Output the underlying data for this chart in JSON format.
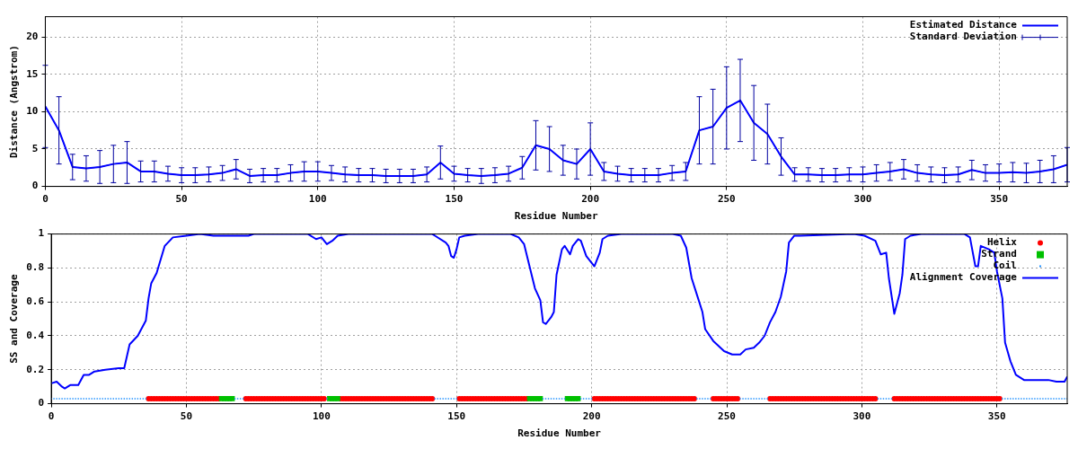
{
  "chart_data": [
    {
      "type": "line",
      "xlabel": "Residue Number",
      "ylabel": "Distance (Angstrom)",
      "xlim": [
        0,
        375
      ],
      "xticks": [
        0,
        50,
        100,
        150,
        200,
        250,
        300,
        350
      ],
      "ylim": [
        0,
        22.7
      ],
      "yticks": [
        0,
        5,
        10,
        15,
        20
      ],
      "grid": true,
      "legend": "top right",
      "x": [
        0,
        5,
        10,
        15,
        20,
        25,
        30,
        35,
        40,
        45,
        50,
        55,
        60,
        65,
        70,
        75,
        80,
        85,
        90,
        95,
        100,
        105,
        110,
        115,
        120,
        125,
        130,
        135,
        140,
        145,
        150,
        155,
        160,
        165,
        170,
        175,
        180,
        185,
        190,
        195,
        200,
        205,
        210,
        215,
        220,
        225,
        230,
        235,
        240,
        245,
        250,
        255,
        260,
        265,
        270,
        275,
        280,
        285,
        290,
        295,
        300,
        305,
        310,
        315,
        320,
        325,
        330,
        335,
        340,
        345,
        350,
        355,
        360,
        365,
        370,
        375
      ],
      "series": [
        {
          "name": "Estimated Distance",
          "color": "#0000ff",
          "marker": "none",
          "line_style": "solid",
          "values": [
            10.7,
            7.5,
            2.6,
            2.4,
            2.6,
            3.0,
            3.2,
            2.0,
            2.0,
            1.7,
            1.5,
            1.5,
            1.6,
            1.8,
            2.3,
            1.4,
            1.5,
            1.5,
            1.8,
            2.0,
            2.0,
            1.8,
            1.6,
            1.5,
            1.5,
            1.4,
            1.4,
            1.4,
            1.6,
            3.2,
            1.7,
            1.5,
            1.4,
            1.5,
            1.7,
            2.5,
            5.5,
            5.0,
            3.5,
            3.0,
            5.0,
            2.0,
            1.7,
            1.5,
            1.5,
            1.5,
            1.8,
            2.0,
            7.5,
            8.0,
            10.5,
            11.5,
            8.5,
            7.0,
            4.0,
            1.6,
            1.6,
            1.5,
            1.5,
            1.6,
            1.6,
            1.8,
            2.0,
            2.3,
            1.8,
            1.6,
            1.5,
            1.6,
            2.2,
            1.8,
            1.8,
            1.9,
            1.8,
            2.0,
            2.3,
            2.9
          ]
        },
        {
          "name": "Standard Deviation",
          "color": "#0000a0",
          "marker": "none",
          "line_style": "solid",
          "values": [
            10.7,
            7.5,
            2.6,
            2.4,
            2.6,
            3.0,
            3.2,
            2.0,
            2.0,
            1.7,
            1.5,
            1.5,
            1.6,
            1.8,
            2.3,
            1.4,
            1.5,
            1.5,
            1.8,
            2.0,
            2.0,
            1.8,
            1.6,
            1.5,
            1.5,
            1.4,
            1.4,
            1.4,
            1.6,
            3.2,
            1.7,
            1.5,
            1.4,
            1.5,
            1.7,
            2.5,
            5.5,
            5.0,
            3.5,
            3.0,
            5.0,
            2.0,
            1.7,
            1.5,
            1.5,
            1.5,
            1.8,
            2.0,
            7.5,
            8.0,
            10.5,
            11.5,
            8.5,
            7.0,
            4.0,
            1.6,
            1.6,
            1.5,
            1.5,
            1.6,
            1.6,
            1.8,
            2.0,
            2.3,
            1.8,
            1.6,
            1.5,
            1.6,
            2.2,
            1.8,
            1.8,
            1.9,
            1.8,
            2.0,
            2.3,
            2.9
          ],
          "errors": [
            5.5,
            4.5,
            1.7,
            1.7,
            2.2,
            2.5,
            2.8,
            1.4,
            1.4,
            1.0,
            1.0,
            1.0,
            1.0,
            1.0,
            1.3,
            0.9,
            0.9,
            0.9,
            1.1,
            1.3,
            1.3,
            1.0,
            1.0,
            0.9,
            0.9,
            0.9,
            0.9,
            0.9,
            1.0,
            2.2,
            1.0,
            0.9,
            1.0,
            1.0,
            1.0,
            1.5,
            3.3,
            3.0,
            2.0,
            2.0,
            3.5,
            1.2,
            1.0,
            0.9,
            0.9,
            0.9,
            1.0,
            1.2,
            4.5,
            5.0,
            5.5,
            5.5,
            5.0,
            4.0,
            2.5,
            0.9,
            0.9,
            0.9,
            0.9,
            0.9,
            1.0,
            1.1,
            1.2,
            1.3,
            1.1,
            1.0,
            1.0,
            1.0,
            1.3,
            1.1,
            1.2,
            1.3,
            1.3,
            1.5,
            1.8,
            2.3
          ]
        }
      ]
    },
    {
      "type": "line",
      "xlabel": "Residue Number",
      "ylabel": "SS and Coverage",
      "xlim": [
        0,
        376
      ],
      "xticks": [
        0,
        50,
        100,
        150,
        200,
        250,
        300,
        350
      ],
      "ylim": [
        0,
        1
      ],
      "yticks": [
        0,
        0.2,
        0.4,
        0.6,
        0.8,
        1
      ],
      "grid": true,
      "legend": "top right",
      "series": [
        {
          "name": "Helix",
          "type": "scatter",
          "color": "#ff0000",
          "marker": "circle",
          "x": [
            36,
            37,
            38,
            39,
            40,
            41,
            42,
            43,
            44,
            45,
            46,
            47,
            48,
            49,
            50,
            51,
            52,
            53,
            54,
            55,
            56,
            57,
            58,
            59,
            60,
            61,
            62,
            72,
            73,
            74,
            75,
            76,
            77,
            78,
            79,
            80,
            81,
            82,
            83,
            84,
            85,
            86,
            87,
            88,
            89,
            90,
            91,
            92,
            93,
            94,
            95,
            96,
            97,
            98,
            99,
            100,
            101,
            107,
            108,
            109,
            110,
            111,
            112,
            113,
            114,
            115,
            116,
            117,
            118,
            119,
            120,
            121,
            122,
            123,
            124,
            125,
            126,
            127,
            128,
            129,
            130,
            131,
            132,
            133,
            134,
            135,
            136,
            137,
            138,
            139,
            140,
            141,
            151,
            152,
            153,
            154,
            155,
            156,
            157,
            158,
            159,
            160,
            161,
            162,
            163,
            164,
            165,
            166,
            167,
            168,
            169,
            170,
            171,
            172,
            173,
            174,
            175,
            176,
            201,
            202,
            203,
            204,
            205,
            206,
            207,
            208,
            209,
            210,
            211,
            212,
            213,
            214,
            215,
            216,
            217,
            218,
            219,
            220,
            221,
            222,
            223,
            224,
            225,
            226,
            227,
            228,
            229,
            230,
            231,
            232,
            233,
            234,
            235,
            236,
            237,
            238,
            245,
            246,
            247,
            248,
            249,
            250,
            251,
            252,
            253,
            254,
            266,
            267,
            268,
            269,
            270,
            271,
            272,
            273,
            274,
            275,
            276,
            277,
            278,
            279,
            280,
            281,
            282,
            283,
            284,
            285,
            286,
            287,
            288,
            289,
            290,
            291,
            292,
            293,
            294,
            295,
            296,
            297,
            298,
            299,
            300,
            301,
            302,
            303,
            304,
            305,
            312,
            313,
            314,
            315,
            316,
            317,
            318,
            319,
            320,
            321,
            322,
            323,
            324,
            325,
            326,
            327,
            328,
            329,
            330,
            331,
            332,
            333,
            334,
            335,
            336,
            337,
            338,
            339,
            340,
            341,
            342,
            343,
            344,
            345,
            346,
            347,
            348,
            349,
            350,
            351
          ],
          "values": [
            0.03,
            0.03,
            0.03,
            0.03,
            0.03,
            0.03,
            0.03,
            0.03,
            0.03,
            0.03,
            0.03,
            0.03,
            0.03,
            0.03,
            0.03,
            0.03,
            0.03,
            0.03,
            0.03,
            0.03,
            0.03,
            0.03,
            0.03,
            0.03,
            0.03,
            0.03,
            0.03,
            0.03,
            0.03,
            0.03,
            0.03,
            0.03,
            0.03,
            0.03,
            0.03,
            0.03,
            0.03,
            0.03,
            0.03,
            0.03,
            0.03,
            0.03,
            0.03,
            0.03,
            0.03,
            0.03,
            0.03,
            0.03,
            0.03,
            0.03,
            0.03,
            0.03,
            0.03,
            0.03,
            0.03,
            0.03,
            0.03,
            0.03,
            0.03,
            0.03,
            0.03,
            0.03,
            0.03,
            0.03,
            0.03,
            0.03,
            0.03,
            0.03,
            0.03,
            0.03,
            0.03,
            0.03,
            0.03,
            0.03,
            0.03,
            0.03,
            0.03,
            0.03,
            0.03,
            0.03,
            0.03,
            0.03,
            0.03,
            0.03,
            0.03,
            0.03,
            0.03,
            0.03,
            0.03,
            0.03,
            0.03,
            0.03,
            0.03,
            0.03,
            0.03,
            0.03,
            0.03,
            0.03,
            0.03,
            0.03,
            0.03,
            0.03,
            0.03,
            0.03,
            0.03,
            0.03,
            0.03,
            0.03,
            0.03,
            0.03,
            0.03,
            0.03,
            0.03,
            0.03,
            0.03,
            0.03,
            0.03,
            0.03,
            0.03,
            0.03,
            0.03,
            0.03,
            0.03,
            0.03,
            0.03,
            0.03,
            0.03,
            0.03,
            0.03,
            0.03,
            0.03,
            0.03,
            0.03,
            0.03,
            0.03,
            0.03,
            0.03,
            0.03,
            0.03,
            0.03,
            0.03,
            0.03,
            0.03,
            0.03,
            0.03,
            0.03,
            0.03,
            0.03,
            0.03,
            0.03,
            0.03,
            0.03,
            0.03,
            0.03,
            0.03,
            0.03,
            0.03,
            0.03,
            0.03,
            0.03,
            0.03,
            0.03,
            0.03,
            0.03,
            0.03,
            0.03,
            0.03,
            0.03,
            0.03,
            0.03,
            0.03,
            0.03,
            0.03,
            0.03,
            0.03,
            0.03,
            0.03,
            0.03,
            0.03,
            0.03,
            0.03,
            0.03,
            0.03,
            0.03,
            0.03,
            0.03,
            0.03,
            0.03,
            0.03,
            0.03,
            0.03,
            0.03,
            0.03,
            0.03,
            0.03,
            0.03,
            0.03,
            0.03,
            0.03,
            0.03,
            0.03,
            0.03,
            0.03,
            0.03,
            0.03,
            0.03,
            0.03,
            0.03,
            0.03,
            0.03,
            0.03,
            0.03,
            0.03,
            0.03,
            0.03,
            0.03,
            0.03,
            0.03,
            0.03,
            0.03,
            0.03,
            0.03,
            0.03,
            0.03,
            0.03,
            0.03,
            0.03,
            0.03,
            0.03,
            0.03,
            0.03,
            0.03,
            0.03,
            0.03,
            0.03,
            0.03,
            0.03,
            0.03,
            0.03,
            0.03,
            0.03,
            0.03,
            0.03,
            0.03,
            0.03,
            0.03
          ]
        },
        {
          "name": "Strand",
          "type": "scatter",
          "color": "#00c000",
          "marker": "square",
          "x": [
            63,
            64,
            65,
            66,
            67,
            103,
            104,
            105,
            106,
            177,
            178,
            179,
            180,
            181,
            191,
            192,
            193,
            194,
            195
          ],
          "values": [
            0.03,
            0.03,
            0.03,
            0.03,
            0.03,
            0.03,
            0.03,
            0.03,
            0.03,
            0.03,
            0.03,
            0.03,
            0.03,
            0.03,
            0.03,
            0.03,
            0.03,
            0.03,
            0.03
          ]
        },
        {
          "name": "Coil",
          "type": "scatter",
          "color": "#1e90ff",
          "marker": "square",
          "x": [
            0,
            1,
            2,
            3,
            4,
            5,
            6,
            7,
            8,
            9,
            10,
            11,
            12,
            13,
            14,
            15,
            16,
            17,
            18,
            19,
            20,
            21,
            22,
            23,
            24,
            25,
            26,
            27,
            28,
            29,
            30,
            31,
            32,
            33,
            34,
            35,
            68,
            69,
            70,
            71,
            102,
            142,
            143,
            144,
            145,
            146,
            147,
            148,
            149,
            150,
            182,
            183,
            184,
            185,
            186,
            187,
            188,
            189,
            190,
            196,
            197,
            198,
            199,
            200,
            239,
            240,
            241,
            242,
            243,
            244,
            255,
            256,
            257,
            258,
            259,
            260,
            261,
            262,
            263,
            264,
            265,
            306,
            307,
            308,
            309,
            310,
            311,
            352,
            353,
            354,
            355,
            356,
            357,
            358,
            359,
            360,
            361,
            362,
            363,
            364,
            365,
            366,
            367,
            368,
            369,
            370,
            371,
            372,
            373,
            374,
            375,
            376
          ],
          "values": [
            0.03,
            0.03,
            0.03,
            0.03,
            0.03,
            0.03,
            0.03,
            0.03,
            0.03,
            0.03,
            0.03,
            0.03,
            0.03,
            0.03,
            0.03,
            0.03,
            0.03,
            0.03,
            0.03,
            0.03,
            0.03,
            0.03,
            0.03,
            0.03,
            0.03,
            0.03,
            0.03,
            0.03,
            0.03,
            0.03,
            0.03,
            0.03,
            0.03,
            0.03,
            0.03,
            0.03,
            0.03,
            0.03,
            0.03,
            0.03,
            0.03,
            0.03,
            0.03,
            0.03,
            0.03,
            0.03,
            0.03,
            0.03,
            0.03,
            0.03,
            0.03,
            0.03,
            0.03,
            0.03,
            0.03,
            0.03,
            0.03,
            0.03,
            0.03,
            0.03,
            0.03,
            0.03,
            0.03,
            0.03,
            0.03,
            0.03,
            0.03,
            0.03,
            0.03,
            0.03,
            0.03,
            0.03,
            0.03,
            0.03,
            0.03,
            0.03,
            0.03,
            0.03,
            0.03,
            0.03,
            0.03,
            0.03,
            0.03,
            0.03,
            0.03,
            0.03,
            0.03,
            0.03,
            0.03,
            0.03,
            0.03,
            0.03,
            0.03,
            0.03,
            0.03,
            0.03,
            0.03,
            0.03,
            0.03,
            0.03,
            0.03,
            0.03,
            0.03,
            0.03,
            0.03,
            0.03,
            0.03,
            0.03,
            0.03,
            0.03,
            0.03,
            0.03
          ]
        },
        {
          "name": "Alignment Coverage",
          "color": "#0000ff",
          "marker": "none",
          "line_style": "solid",
          "x": [
            0,
            2,
            4,
            5,
            7,
            10,
            12,
            14,
            16,
            20,
            25,
            27,
            28,
            29,
            32,
            35,
            36,
            37,
            39,
            42,
            45,
            50,
            55,
            60,
            65,
            70,
            73,
            75,
            95,
            98,
            100,
            102,
            104,
            106,
            110,
            141,
            142,
            146,
            147,
            148,
            149,
            150,
            151,
            153,
            158,
            170,
            173,
            175,
            177,
            179,
            181,
            182,
            183,
            185,
            186,
            187,
            189,
            190,
            192,
            193,
            195,
            196,
            198,
            201,
            203,
            204,
            206,
            211,
            230,
            233,
            235,
            237,
            239,
            241,
            242,
            245,
            249,
            252,
            255,
            257,
            260,
            262,
            264,
            266,
            268,
            270,
            272,
            273,
            275,
            277,
            297,
            301,
            305,
            307,
            309,
            310,
            312,
            314,
            315,
            316,
            318,
            322,
            338,
            340,
            342,
            343,
            344,
            347,
            349,
            350,
            352,
            353,
            355,
            357,
            360,
            369,
            372,
            375,
            376
          ],
          "values": [
            0.12,
            0.13,
            0.1,
            0.09,
            0.11,
            0.11,
            0.17,
            0.17,
            0.19,
            0.2,
            0.21,
            0.21,
            0.28,
            0.35,
            0.4,
            0.49,
            0.62,
            0.71,
            0.77,
            0.93,
            0.98,
            0.99,
            1.0,
            0.99,
            0.99,
            0.99,
            0.99,
            1.0,
            1.0,
            0.97,
            0.98,
            0.94,
            0.96,
            0.99,
            1.0,
            1.0,
            0.99,
            0.95,
            0.93,
            0.87,
            0.86,
            0.91,
            0.98,
            0.99,
            1.0,
            1.0,
            0.98,
            0.94,
            0.81,
            0.68,
            0.61,
            0.48,
            0.47,
            0.51,
            0.54,
            0.76,
            0.91,
            0.93,
            0.88,
            0.93,
            0.97,
            0.96,
            0.87,
            0.81,
            0.89,
            0.97,
            0.99,
            1.0,
            1.0,
            0.99,
            0.92,
            0.74,
            0.64,
            0.54,
            0.44,
            0.37,
            0.31,
            0.29,
            0.29,
            0.32,
            0.33,
            0.36,
            0.4,
            0.48,
            0.54,
            0.63,
            0.78,
            0.95,
            0.99,
            0.99,
            1.0,
            0.99,
            0.96,
            0.88,
            0.89,
            0.74,
            0.53,
            0.65,
            0.76,
            0.97,
            0.99,
            1.0,
            1.0,
            0.98,
            0.81,
            0.81,
            0.93,
            0.91,
            0.89,
            0.78,
            0.62,
            0.36,
            0.25,
            0.17,
            0.14,
            0.14,
            0.13,
            0.13,
            0.16
          ]
        }
      ]
    }
  ]
}
